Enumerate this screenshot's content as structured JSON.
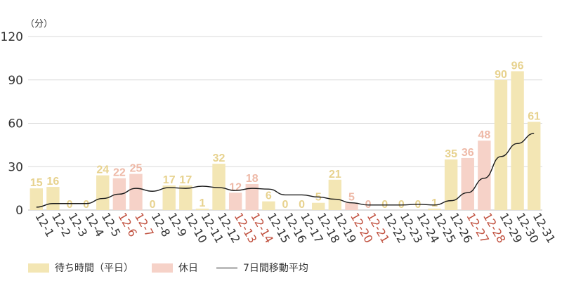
{
  "chart_data": {
    "type": "bar",
    "unit_label": "（分）",
    "categories": [
      "12-1",
      "12-2",
      "12-3",
      "12-4",
      "12-5",
      "12-6",
      "12-7",
      "12-8",
      "12-9",
      "12-10",
      "12-11",
      "12-12",
      "12-13",
      "12-14",
      "12-15",
      "12-16",
      "12-17",
      "12-18",
      "12-19",
      "12-20",
      "12-21",
      "12-22",
      "12-23",
      "12-24",
      "12-25",
      "12-26",
      "12-27",
      "12-28",
      "12-29",
      "12-30",
      "12-31"
    ],
    "values": [
      15,
      16,
      0,
      0,
      24,
      22,
      25,
      0,
      17,
      17,
      1,
      32,
      12,
      18,
      6,
      0,
      0,
      5,
      21,
      5,
      0,
      0,
      0,
      0,
      1,
      35,
      36,
      48,
      90,
      96,
      61
    ],
    "holiday": [
      false,
      false,
      false,
      false,
      false,
      true,
      true,
      false,
      false,
      false,
      false,
      false,
      true,
      true,
      false,
      false,
      false,
      false,
      false,
      true,
      true,
      false,
      false,
      false,
      false,
      false,
      true,
      true,
      false,
      false,
      false
    ],
    "moving_average": [
      2,
      4.5,
      4.5,
      4.5,
      8,
      11,
      15,
      13,
      15.5,
      15,
      16.5,
      15.5,
      13.5,
      15,
      14.5,
      10.5,
      10.5,
      9,
      7.5,
      5,
      3.5,
      3.5,
      3.5,
      4,
      3.5,
      6.5,
      12,
      22,
      37,
      46,
      53
    ],
    "ylim": [
      0,
      120
    ],
    "yticks": [
      0,
      30,
      60,
      90,
      120
    ],
    "grid": true,
    "legend_position": "bottom-left",
    "series": [
      {
        "name": "待ち時間（平日）",
        "role": "weekday_bar"
      },
      {
        "name": "休日",
        "role": "holiday_bar"
      },
      {
        "name": "7日間移動平均",
        "role": "moving_average_line"
      }
    ],
    "colors": {
      "weekday_bar": "#f3e6b4",
      "weekday_label": "#e7d28e",
      "holiday_bar": "#f6d2c8",
      "holiday_label": "#eeb9a7",
      "holiday_tick": "#c0503e",
      "weekday_tick": "#333333",
      "line": "#1a1a1a",
      "grid": "#d9d9d9"
    }
  }
}
